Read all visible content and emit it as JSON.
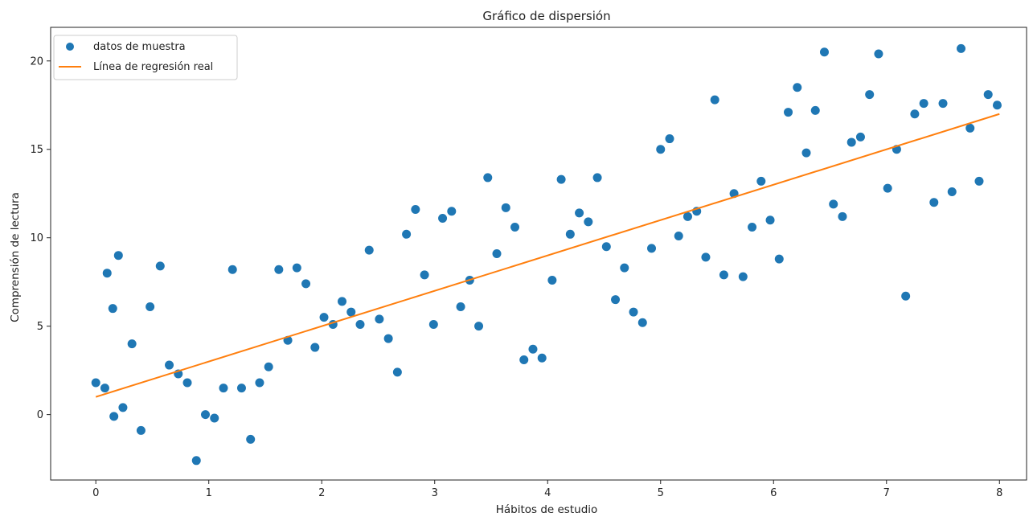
{
  "chart_data": {
    "type": "scatter",
    "title": "Gráfico de dispersión",
    "xlabel": "Hábitos de estudio",
    "ylabel": "Comprensión de lectura",
    "xlim": [
      -0.4,
      8.24
    ],
    "ylim": [
      -3.7,
      21.9
    ],
    "x_ticks": [
      0,
      1,
      2,
      3,
      4,
      5,
      6,
      7,
      8
    ],
    "y_ticks": [
      0,
      5,
      10,
      15,
      20
    ],
    "grid": false,
    "legend_placement": "top-left",
    "colors": {
      "scatter": "#1f77b4",
      "line": "#ff7f0e"
    },
    "series": [
      {
        "name": "datos de muestra",
        "kind": "scatter",
        "points": [
          [
            0.0,
            1.8
          ],
          [
            0.08,
            1.5
          ],
          [
            0.1,
            8.0
          ],
          [
            0.15,
            6.0
          ],
          [
            0.16,
            -0.1
          ],
          [
            0.2,
            9.0
          ],
          [
            0.24,
            0.4
          ],
          [
            0.32,
            4.0
          ],
          [
            0.4,
            -0.9
          ],
          [
            0.48,
            6.1
          ],
          [
            0.57,
            8.4
          ],
          [
            0.65,
            2.8
          ],
          [
            0.73,
            2.3
          ],
          [
            0.81,
            1.8
          ],
          [
            0.89,
            -2.6
          ],
          [
            0.97,
            0.0
          ],
          [
            1.05,
            -0.2
          ],
          [
            1.13,
            1.5
          ],
          [
            1.21,
            8.2
          ],
          [
            1.29,
            1.5
          ],
          [
            1.37,
            -1.4
          ],
          [
            1.45,
            1.8
          ],
          [
            1.53,
            2.7
          ],
          [
            1.62,
            8.2
          ],
          [
            1.7,
            4.2
          ],
          [
            1.78,
            8.3
          ],
          [
            1.86,
            7.4
          ],
          [
            1.94,
            3.8
          ],
          [
            2.02,
            5.5
          ],
          [
            2.1,
            5.1
          ],
          [
            2.18,
            6.4
          ],
          [
            2.26,
            5.8
          ],
          [
            2.34,
            5.1
          ],
          [
            2.42,
            9.3
          ],
          [
            2.51,
            5.4
          ],
          [
            2.59,
            4.3
          ],
          [
            2.67,
            2.4
          ],
          [
            2.75,
            10.2
          ],
          [
            2.83,
            11.6
          ],
          [
            2.91,
            7.9
          ],
          [
            2.99,
            5.1
          ],
          [
            3.07,
            11.1
          ],
          [
            3.15,
            11.5
          ],
          [
            3.23,
            6.1
          ],
          [
            3.31,
            7.6
          ],
          [
            3.39,
            5.0
          ],
          [
            3.47,
            13.4
          ],
          [
            3.55,
            9.1
          ],
          [
            3.63,
            11.7
          ],
          [
            3.71,
            10.6
          ],
          [
            3.79,
            3.1
          ],
          [
            3.87,
            3.7
          ],
          [
            3.95,
            3.2
          ],
          [
            4.04,
            7.6
          ],
          [
            4.12,
            13.3
          ],
          [
            4.2,
            10.2
          ],
          [
            4.28,
            11.4
          ],
          [
            4.36,
            10.9
          ],
          [
            4.44,
            13.4
          ],
          [
            4.52,
            9.5
          ],
          [
            4.6,
            6.5
          ],
          [
            4.68,
            8.3
          ],
          [
            4.76,
            5.8
          ],
          [
            4.84,
            5.2
          ],
          [
            4.92,
            9.4
          ],
          [
            5.0,
            15.0
          ],
          [
            5.08,
            15.6
          ],
          [
            5.16,
            10.1
          ],
          [
            5.24,
            11.2
          ],
          [
            5.32,
            11.5
          ],
          [
            5.4,
            8.9
          ],
          [
            5.48,
            17.8
          ],
          [
            5.56,
            7.9
          ],
          [
            5.65,
            12.5
          ],
          [
            5.73,
            7.8
          ],
          [
            5.81,
            10.6
          ],
          [
            5.89,
            13.2
          ],
          [
            5.97,
            11.0
          ],
          [
            6.05,
            8.8
          ],
          [
            6.13,
            17.1
          ],
          [
            6.21,
            18.5
          ],
          [
            6.29,
            14.8
          ],
          [
            6.37,
            17.2
          ],
          [
            6.45,
            20.5
          ],
          [
            6.53,
            11.9
          ],
          [
            6.61,
            11.2
          ],
          [
            6.69,
            15.4
          ],
          [
            6.77,
            15.7
          ],
          [
            6.85,
            18.1
          ],
          [
            6.93,
            20.4
          ],
          [
            7.01,
            12.8
          ],
          [
            7.09,
            15.0
          ],
          [
            7.17,
            6.7
          ],
          [
            7.25,
            17.0
          ],
          [
            7.33,
            17.6
          ],
          [
            7.42,
            12.0
          ],
          [
            7.5,
            17.6
          ],
          [
            7.58,
            12.6
          ],
          [
            7.66,
            20.7
          ],
          [
            7.74,
            16.2
          ],
          [
            7.82,
            13.2
          ],
          [
            7.9,
            18.1
          ],
          [
            7.98,
            17.5
          ]
        ]
      },
      {
        "name": "Línea de regresión real",
        "kind": "line",
        "points": [
          [
            0,
            1.0
          ],
          [
            8,
            17.0
          ]
        ]
      }
    ]
  }
}
